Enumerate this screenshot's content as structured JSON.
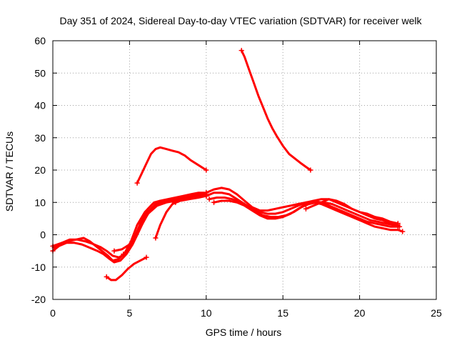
{
  "chart_data": {
    "type": "line",
    "title": "Day 351 of 2024, Sidereal Day-to-day VTEC variation (SDTVAR) for receiver welk",
    "xlabel": "GPS time / hours",
    "ylabel": "SDTVAR / TECUs",
    "xlim": [
      0,
      25
    ],
    "ylim": [
      -20,
      60
    ],
    "xticks": [
      "0",
      "5",
      "10",
      "15",
      "20",
      "25"
    ],
    "yticks": [
      "-20",
      "-10",
      "0",
      "10",
      "20",
      "30",
      "40",
      "50",
      "60"
    ],
    "grid": true,
    "color": "#ff0000",
    "series": [
      {
        "name": "track-1",
        "width": 3,
        "x": [
          0,
          0.3,
          0.6,
          1.0,
          1.5,
          2.0,
          2.4,
          2.8,
          3.2,
          3.6,
          3.9,
          4.3,
          4.7,
          5.1,
          5.5,
          6.0,
          6.5,
          7.0,
          7.5,
          8.0,
          8.5,
          9.0,
          9.5,
          10.0
        ],
        "y": [
          -3.5,
          -3,
          -2.5,
          -2,
          -1.5,
          -1,
          -2,
          -3.5,
          -5,
          -6.5,
          -8,
          -7.5,
          -5.5,
          -2,
          3,
          7,
          9.5,
          10.5,
          11,
          11.5,
          12,
          12.5,
          13,
          13
        ]
      },
      {
        "name": "track-2",
        "width": 3,
        "x": [
          0,
          0.4,
          0.9,
          1.4,
          1.9,
          2.4,
          2.9,
          3.3,
          3.7,
          4.0,
          4.4,
          4.8,
          5.2,
          5.6,
          6.0,
          6.5,
          7.0,
          7.5,
          8.0,
          8.5,
          9.0,
          9.5,
          10.0
        ],
        "y": [
          -5,
          -3.5,
          -2.5,
          -2.5,
          -3,
          -4,
          -5,
          -6,
          -7.5,
          -8.5,
          -8,
          -6,
          -3,
          1,
          5,
          8.5,
          10,
          10.5,
          11,
          11.5,
          12,
          12.5,
          12.5
        ]
      },
      {
        "name": "track-3",
        "width": 3,
        "x": [
          0.1,
          0.6,
          1.1,
          1.6,
          2.1,
          2.6,
          3.1,
          3.5,
          3.9,
          4.3,
          4.7,
          5.0,
          5.4,
          5.8,
          6.2,
          6.8,
          7.4,
          8.0,
          8.7,
          9.4,
          10.0
        ],
        "y": [
          -4,
          -2.5,
          -1.5,
          -1.5,
          -2,
          -2.8,
          -3.8,
          -5,
          -6.5,
          -7,
          -6,
          -4,
          -1,
          3,
          6.5,
          9,
          10,
          10.5,
          11,
          11.5,
          12
        ]
      },
      {
        "name": "track-4",
        "width": 3,
        "x": [
          4.0,
          4.5,
          5.0,
          5.4,
          5.8,
          6.2,
          6.6,
          7.0,
          7.5,
          8.0,
          8.5,
          9.0,
          9.5,
          10.0
        ],
        "y": [
          -5,
          -4.5,
          -3,
          0,
          4,
          7,
          9,
          10,
          10.5,
          10.5,
          11,
          11.5,
          12,
          12
        ]
      },
      {
        "name": "track-5",
        "width": 3,
        "x": [
          4.6,
          5.0,
          5.4,
          5.8,
          6.2,
          6.6,
          7.0,
          7.5,
          8.0
        ],
        "y": [
          -6,
          -4,
          0,
          4.5,
          8,
          10,
          10.5,
          10.5,
          10
        ]
      },
      {
        "name": "track-6",
        "width": 3,
        "x": [
          6.7,
          7.0,
          7.4,
          7.8,
          8.3,
          8.9,
          9.5,
          10.0
        ],
        "y": [
          -1,
          3,
          7,
          9.5,
          10.5,
          11,
          11.5,
          12
        ]
      },
      {
        "name": "track-7",
        "width": 3,
        "x": [
          3.5,
          3.8,
          4.1,
          4.5,
          4.9,
          5.3,
          5.7,
          6.1
        ],
        "y": [
          -13,
          -14,
          -14,
          -12.5,
          -10.5,
          -9,
          -8,
          -7
        ]
      },
      {
        "name": "track-8",
        "width": 3,
        "x": [
          5.5,
          5.8,
          6.1,
          6.4,
          6.7,
          7.0,
          7.4,
          7.8,
          8.2,
          8.6,
          9.0,
          9.5,
          10.0
        ],
        "y": [
          16,
          19,
          22,
          25,
          26.5,
          27,
          26.5,
          26,
          25.5,
          24.5,
          23,
          21.5,
          20
        ]
      },
      {
        "name": "track-9",
        "width": 3,
        "x": [
          12.3,
          12.5,
          12.8,
          13.1,
          13.4,
          13.7,
          14.0,
          14.3,
          14.6,
          15.0,
          15.4,
          15.8,
          16.2,
          16.5,
          16.8
        ],
        "y": [
          57,
          55,
          51,
          47,
          43,
          39.5,
          36,
          33,
          30.5,
          27.5,
          25,
          23.5,
          22,
          21,
          20
        ]
      },
      {
        "name": "track-10",
        "width": 3,
        "x": [
          10.0,
          10.5,
          11.0,
          11.5,
          12.0,
          12.5,
          13.0,
          13.5,
          14.0,
          14.5,
          15.0,
          15.5,
          16.0,
          16.5,
          17.0,
          17.5,
          18.0,
          18.5,
          19.0,
          19.5,
          20.0,
          20.5,
          21.0,
          21.5,
          22.0,
          22.5,
          22.8
        ],
        "y": [
          13,
          14,
          14.5,
          14,
          12.5,
          10.5,
          8.5,
          7.5,
          7.5,
          8,
          8.5,
          9,
          9.5,
          10,
          10,
          9.5,
          8.5,
          7.5,
          6.5,
          5.5,
          4.5,
          3.5,
          2.5,
          2,
          1.5,
          1.5,
          1
        ]
      },
      {
        "name": "track-11",
        "width": 3,
        "x": [
          10.0,
          10.5,
          11.0,
          11.5,
          12.0,
          12.5,
          13.0,
          13.5,
          14.0,
          14.5,
          15.0,
          15.5,
          16.0,
          16.5,
          17.0,
          17.5,
          18.0,
          18.5,
          19.0,
          19.5,
          20.0,
          20.5,
          21.0,
          21.5,
          22.0,
          22.5
        ],
        "y": [
          12,
          13,
          13,
          12.5,
          11,
          9.5,
          8,
          7,
          6.5,
          6.5,
          7,
          8,
          9,
          10,
          10.5,
          10,
          9,
          8,
          7,
          6,
          5,
          4,
          3.5,
          3,
          2.5,
          2.5
        ]
      },
      {
        "name": "track-12",
        "width": 3,
        "x": [
          10.2,
          10.7,
          11.2,
          11.7,
          12.2,
          12.7,
          13.2,
          13.7,
          14.2,
          14.7,
          15.2,
          15.7,
          16.2,
          16.7,
          17.2,
          17.7,
          18.2,
          18.7,
          19.2,
          19.7,
          20.2,
          20.7,
          21.2,
          21.7,
          22.2,
          22.6
        ],
        "y": [
          11,
          11.5,
          11.5,
          11,
          10,
          8.5,
          7,
          6,
          5.5,
          5.5,
          6,
          7,
          8.5,
          9.5,
          10,
          10,
          9.5,
          8.5,
          7.5,
          6.5,
          5.5,
          4.5,
          4,
          3.5,
          3,
          2.5
        ]
      },
      {
        "name": "track-13",
        "width": 3,
        "x": [
          10.5,
          11.0,
          11.5,
          12.0,
          12.5,
          13.0,
          13.5,
          14.0,
          14.5,
          15.0,
          15.5,
          16.0,
          16.5,
          17.0,
          17.5,
          18.0,
          18.5,
          19.0,
          19.5,
          20.0,
          20.5,
          21.0,
          21.5,
          22.0,
          22.5
        ],
        "y": [
          10,
          10.5,
          10.5,
          10,
          9,
          7.5,
          6,
          5,
          5,
          5.5,
          6.5,
          8,
          9.5,
          10.5,
          11,
          11,
          10,
          9,
          8,
          7,
          6,
          5,
          4.5,
          3.5,
          3
        ]
      },
      {
        "name": "track-14",
        "width": 3,
        "x": [
          16.5,
          17.0,
          17.5,
          18.0,
          18.5,
          19.0,
          19.5,
          20.0,
          20.5,
          21.0,
          21.5,
          22.0,
          22.5
        ],
        "y": [
          8,
          9,
          10,
          11,
          10.5,
          9.5,
          8,
          7,
          6.5,
          5.5,
          5,
          4,
          3.5
        ]
      }
    ]
  }
}
